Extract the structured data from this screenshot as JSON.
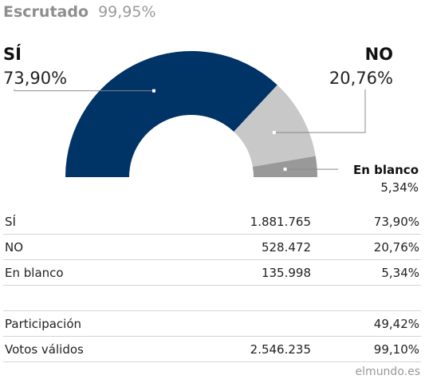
{
  "header": {
    "label": "Escrutado",
    "value": "99,95%"
  },
  "chart_data": {
    "type": "pie",
    "variant": "half-donut",
    "slices": [
      {
        "name": "SÍ",
        "value": 73.9,
        "label": "73,90%",
        "color": "#003366"
      },
      {
        "name": "NO",
        "value": 20.76,
        "label": "20,76%",
        "color": "#c8c8c8"
      },
      {
        "name": "En blanco",
        "value": 5.34,
        "label": "5,34%",
        "color": "#999999"
      }
    ]
  },
  "table": {
    "rows": [
      {
        "name": "SÍ",
        "votes": "1.881.765",
        "pct": "73,90%"
      },
      {
        "name": "NO",
        "votes": "528.472",
        "pct": "20,76%"
      },
      {
        "name": "En blanco",
        "votes": "135.998",
        "pct": "5,34%"
      }
    ],
    "summary": [
      {
        "name": "Participación",
        "votes": "",
        "pct": "49,42%"
      },
      {
        "name": "Votos válidos",
        "votes": "2.546.235",
        "pct": "99,10%"
      }
    ]
  },
  "source": "elmundo.es"
}
